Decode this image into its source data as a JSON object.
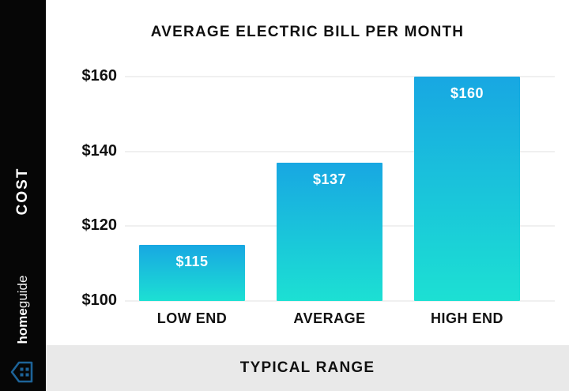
{
  "sidebar": {
    "cost_label": "COST",
    "brand": {
      "name_bold": "home",
      "name_light": "guide"
    }
  },
  "footer": {
    "label": "TYPICAL RANGE"
  },
  "chart_data": {
    "type": "bar",
    "title": "AVERAGE ELECTRIC BILL PER MONTH",
    "categories": [
      "LOW END",
      "AVERAGE",
      "HIGH END"
    ],
    "values": [
      115,
      137,
      160
    ],
    "bar_labels": [
      "$115",
      "$137",
      "$160"
    ],
    "y_ticks": [
      {
        "value": 160,
        "label": "$160"
      },
      {
        "value": 140,
        "label": "$140"
      },
      {
        "value": 120,
        "label": "$120"
      },
      {
        "value": 100,
        "label": "$100"
      }
    ],
    "ylim": [
      100,
      160
    ],
    "xlabel": "TYPICAL RANGE",
    "ylabel": "COST",
    "grid": true,
    "legend": false,
    "colors": {
      "bar_gradient_top": "#18a7e2",
      "bar_gradient_bottom": "#1ce0d3",
      "grid_line": "#f0f0f0",
      "sidebar_bg": "#060606",
      "footer_bg": "#e9e9e9",
      "brand_icon_blue": "#1d6398",
      "text": "#111111",
      "bar_value_text": "#ffffff"
    }
  }
}
